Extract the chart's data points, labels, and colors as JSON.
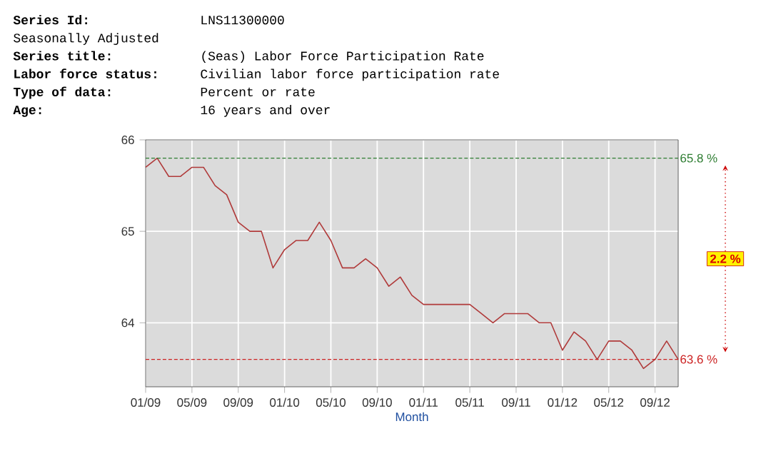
{
  "chart_data": {
    "type": "line",
    "xlabel": "Month",
    "x": [
      "2009-01",
      "2009-02",
      "2009-03",
      "2009-04",
      "2009-05",
      "2009-06",
      "2009-07",
      "2009-08",
      "2009-09",
      "2009-10",
      "2009-11",
      "2009-12",
      "2010-01",
      "2010-02",
      "2010-03",
      "2010-04",
      "2010-05",
      "2010-06",
      "2010-07",
      "2010-08",
      "2010-09",
      "2010-10",
      "2010-11",
      "2010-12",
      "2011-01",
      "2011-02",
      "2011-03",
      "2011-04",
      "2011-05",
      "2011-06",
      "2011-07",
      "2011-08",
      "2011-09",
      "2011-10",
      "2011-11",
      "2011-12",
      "2012-01",
      "2012-02",
      "2012-03",
      "2012-04",
      "2012-05",
      "2012-06",
      "2012-07",
      "2012-08",
      "2012-09",
      "2012-10",
      "2012-11"
    ],
    "values": [
      65.7,
      65.8,
      65.6,
      65.6,
      65.7,
      65.7,
      65.5,
      65.4,
      65.1,
      65.0,
      65.0,
      64.6,
      64.8,
      64.9,
      64.9,
      65.1,
      64.9,
      64.6,
      64.6,
      64.7,
      64.6,
      64.4,
      64.5,
      64.3,
      64.2,
      64.2,
      64.2,
      64.2,
      64.2,
      64.1,
      64.0,
      64.1,
      64.1,
      64.1,
      64.0,
      64.0,
      63.7,
      63.9,
      63.8,
      63.6,
      63.8,
      63.8,
      63.7,
      63.5,
      63.6,
      63.8,
      63.6
    ],
    "color": "#b03a3a",
    "marker": "none",
    "line_style": "solid",
    "grid": true,
    "xlim": [
      "2009-01",
      "2012-11"
    ],
    "xticks": [
      {
        "value": "2009-01",
        "label": "01/09"
      },
      {
        "value": "2009-05",
        "label": "05/09"
      },
      {
        "value": "2009-09",
        "label": "09/09"
      },
      {
        "value": "2010-01",
        "label": "01/10"
      },
      {
        "value": "2010-05",
        "label": "05/10"
      },
      {
        "value": "2010-09",
        "label": "09/10"
      },
      {
        "value": "2011-01",
        "label": "01/11"
      },
      {
        "value": "2011-05",
        "label": "05/11"
      },
      {
        "value": "2011-09",
        "label": "09/11"
      },
      {
        "value": "2012-01",
        "label": "01/12"
      },
      {
        "value": "2012-05",
        "label": "05/12"
      },
      {
        "value": "2012-09",
        "label": "09/12"
      }
    ],
    "ylim": [
      63.3,
      66.0
    ],
    "yticks": [
      64,
      65,
      66
    ],
    "ref_lines": [
      {
        "axis": "y",
        "value": 65.8,
        "label": "65.8 %",
        "color": "#2e7d32",
        "line_style": "dashed"
      },
      {
        "axis": "y",
        "value": 63.6,
        "label": "63.6 %",
        "color": "#cc2222",
        "line_style": "dashed"
      }
    ],
    "annotations": [
      "Series Id:",
      "LNS11300000",
      "Seasonally Adjusted",
      "Series title:",
      "(Seas) Labor Force Participation Rate",
      "Labor force status:",
      "Civilian labor force participation rate",
      "Type of data:",
      "Percent or rate",
      "Age:",
      "16 years and over",
      "2.2 %"
    ]
  }
}
